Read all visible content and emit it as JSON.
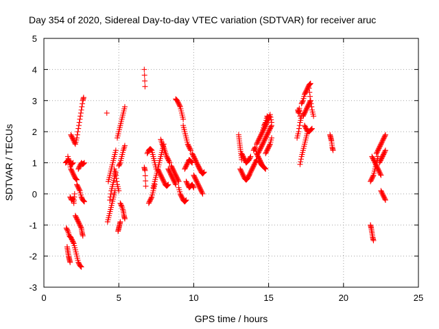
{
  "chart_data": {
    "type": "scatter",
    "title": "Day 354 of 2020, Sidereal Day-to-day VTEC variation (SDTVAR) for receiver aruc",
    "xlabel": "GPS time / hours",
    "ylabel": "SDTVAR / TECUs",
    "xlim": [
      0,
      25
    ],
    "ylim": [
      -3,
      5
    ],
    "xticks": [
      0,
      5,
      10,
      15,
      20,
      25
    ],
    "yticks": [
      -3,
      -2,
      -1,
      0,
      1,
      2,
      3,
      4,
      5
    ],
    "grid": true,
    "marker": "+",
    "color": "#ff0000",
    "series": [
      {
        "name": "SDTVAR",
        "segments": [
          {
            "x": [
              1.45,
              1.55,
              1.65,
              1.75,
              1.85,
              1.95
            ],
            "y": [
              1.0,
              1.05,
              1.1,
              1.0,
              0.95,
              1.0
            ]
          },
          {
            "x": [
              1.55,
              1.6,
              1.65,
              1.7,
              1.75
            ],
            "y": [
              -1.7,
              -1.85,
              -2.0,
              -2.1,
              -2.2
            ]
          },
          {
            "x": [
              1.5,
              1.6,
              1.7,
              1.8,
              1.9,
              2.0,
              2.1,
              2.2,
              2.3,
              2.4,
              2.5
            ],
            "y": [
              -1.1,
              -1.2,
              -1.35,
              -1.4,
              -1.5,
              -1.6,
              -1.8,
              -2.0,
              -2.2,
              -2.3,
              -2.35
            ]
          },
          {
            "x": [
              1.6,
              1.7,
              1.8,
              1.9,
              2.0,
              2.1,
              2.2
            ],
            "y": [
              1.2,
              1.0,
              0.8,
              0.7,
              0.6,
              0.5,
              0.45
            ]
          },
          {
            "x": [
              1.75,
              1.85,
              1.95,
              2.0,
              2.05
            ],
            "y": [
              -0.1,
              -0.2,
              -0.15,
              -0.3,
              0.0
            ]
          },
          {
            "x": [
              1.8,
              1.9,
              2.0,
              2.1,
              2.2,
              2.3,
              2.4,
              2.5,
              2.6,
              2.65
            ],
            "y": [
              1.9,
              1.8,
              1.7,
              1.6,
              1.8,
              2.1,
              2.4,
              2.7,
              3.0,
              3.1
            ]
          },
          {
            "x": [
              2.1,
              2.2,
              2.3,
              2.4,
              2.5,
              2.55,
              2.6
            ],
            "y": [
              -0.7,
              -0.8,
              -0.9,
              -1.0,
              -1.1,
              -1.25,
              -1.35
            ]
          },
          {
            "x": [
              2.2,
              2.3,
              2.4,
              2.5,
              2.6,
              2.7
            ],
            "y": [
              0.3,
              0.2,
              0.1,
              -0.1,
              -0.2,
              -0.25
            ]
          },
          {
            "x": [
              2.3,
              2.4,
              2.5,
              2.6,
              2.7
            ],
            "y": [
              0.8,
              0.9,
              1.0,
              0.95,
              1.0
            ]
          },
          {
            "x": [
              4.2
            ],
            "y": [
              2.6
            ]
          },
          {
            "x": [
              4.25,
              4.35,
              4.45,
              4.55,
              4.65,
              4.75
            ],
            "y": [
              -0.9,
              -0.7,
              -0.5,
              -0.3,
              -0.1,
              0.1
            ]
          },
          {
            "x": [
              4.3,
              4.4,
              4.5,
              4.6,
              4.7,
              4.8
            ],
            "y": [
              0.4,
              0.6,
              0.8,
              1.0,
              1.2,
              1.4
            ]
          },
          {
            "x": [
              4.4,
              4.5,
              4.6,
              4.7,
              4.8
            ],
            "y": [
              -0.2,
              0.1,
              0.3,
              0.5,
              0.7
            ]
          },
          {
            "x": [
              4.7,
              4.8,
              4.9,
              5.0
            ],
            "y": [
              0.8,
              0.6,
              0.3,
              0.1
            ]
          },
          {
            "x": [
              4.9,
              5.0,
              5.1,
              5.2,
              5.3,
              5.4
            ],
            "y": [
              1.8,
              2.0,
              2.2,
              2.4,
              2.6,
              2.8
            ]
          },
          {
            "x": [
              4.95,
              5.0,
              5.05,
              5.1
            ],
            "y": [
              -1.2,
              -1.1,
              -1.0,
              -0.9
            ]
          },
          {
            "x": [
              5.0,
              5.1,
              5.2,
              5.3,
              5.4
            ],
            "y": [
              0.9,
              1.0,
              1.2,
              1.4,
              1.55
            ]
          },
          {
            "x": [
              5.1,
              5.2,
              5.3,
              5.35,
              5.4
            ],
            "y": [
              -0.3,
              -0.4,
              -0.55,
              -0.7,
              -0.8
            ]
          },
          {
            "x": [
              6.7,
              6.75
            ],
            "y": [
              4.0,
              3.45
            ]
          },
          {
            "x": [
              6.7,
              6.75,
              6.8
            ],
            "y": [
              0.85,
              0.75,
              0.25
            ]
          },
          {
            "x": [
              6.9,
              7.0,
              7.1,
              7.2,
              7.3,
              7.4,
              7.5
            ],
            "y": [
              1.3,
              1.4,
              1.45,
              1.4,
              1.2,
              1.0,
              0.8
            ]
          },
          {
            "x": [
              7.0,
              7.1,
              7.2,
              7.3,
              7.4
            ],
            "y": [
              -0.3,
              -0.2,
              -0.1,
              0.1,
              0.3
            ]
          },
          {
            "x": [
              7.3,
              7.4,
              7.5,
              7.6,
              7.7,
              7.8,
              7.9,
              8.0
            ],
            "y": [
              0.2,
              0.4,
              0.6,
              0.8,
              1.0,
              1.2,
              1.4,
              1.6
            ]
          },
          {
            "x": [
              7.6,
              7.7,
              7.8,
              7.9,
              8.0,
              8.1,
              8.2,
              8.3
            ],
            "y": [
              0.8,
              0.7,
              0.6,
              0.5,
              0.4,
              0.3,
              0.25,
              0.3
            ]
          },
          {
            "x": [
              7.8,
              7.9,
              8.0,
              8.1,
              8.2,
              8.3,
              8.4
            ],
            "y": [
              1.75,
              1.6,
              1.5,
              1.35,
              1.2,
              1.1,
              1.0
            ]
          },
          {
            "x": [
              8.3,
              8.4,
              8.5,
              8.6,
              8.7,
              8.8
            ],
            "y": [
              0.8,
              0.7,
              0.6,
              0.5,
              0.4,
              0.3
            ]
          },
          {
            "x": [
              8.5,
              8.6,
              8.7,
              8.8,
              8.9,
              9.0
            ],
            "y": [
              0.9,
              0.8,
              0.7,
              0.6,
              0.5,
              0.4
            ]
          },
          {
            "x": [
              8.8,
              8.9,
              9.0,
              9.1,
              9.2,
              9.3
            ],
            "y": [
              3.05,
              3.0,
              2.9,
              2.8,
              2.6,
              2.4
            ]
          },
          {
            "x": [
              9.0,
              9.1,
              9.2,
              9.3,
              9.4,
              9.5
            ],
            "y": [
              0.2,
              0.0,
              -0.1,
              -0.2,
              -0.25,
              -0.2
            ]
          },
          {
            "x": [
              9.3,
              9.4,
              9.5,
              9.6,
              9.7,
              9.8
            ],
            "y": [
              2.2,
              2.0,
              1.8,
              1.6,
              1.5,
              1.4
            ]
          },
          {
            "x": [
              9.4,
              9.5,
              9.6,
              9.7,
              9.8,
              9.9
            ],
            "y": [
              0.8,
              0.9,
              1.0,
              1.1,
              1.05,
              1.0
            ]
          },
          {
            "x": [
              9.5,
              9.6,
              9.7,
              9.8,
              9.9,
              10.0
            ],
            "y": [
              0.4,
              0.3,
              0.2,
              0.25,
              0.3,
              0.2
            ]
          },
          {
            "x": [
              9.9,
              10.0,
              10.1,
              10.2,
              10.3,
              10.4
            ],
            "y": [
              1.3,
              1.2,
              1.1,
              1.0,
              0.9,
              0.8
            ]
          },
          {
            "x": [
              10.0,
              10.1,
              10.2,
              10.3,
              10.4,
              10.5,
              10.6
            ],
            "y": [
              0.6,
              0.5,
              0.4,
              0.3,
              0.2,
              0.1,
              0.0
            ]
          },
          {
            "x": [
              10.3,
              10.4,
              10.5,
              10.6,
              10.7
            ],
            "y": [
              0.9,
              0.8,
              0.7,
              0.65,
              0.7
            ]
          },
          {
            "x": [
              13.0,
              13.05,
              13.1,
              13.15,
              13.2
            ],
            "y": [
              1.9,
              1.7,
              1.5,
              1.3,
              1.1
            ]
          },
          {
            "x": [
              13.1,
              13.2,
              13.3,
              13.4,
              13.5,
              13.6,
              13.7
            ],
            "y": [
              0.8,
              0.7,
              0.6,
              0.5,
              0.45,
              0.5,
              0.6
            ]
          },
          {
            "x": [
              13.2,
              13.3,
              13.4,
              13.5,
              13.6,
              13.7,
              13.8
            ],
            "y": [
              1.3,
              1.2,
              1.1,
              1.0,
              1.05,
              1.1,
              1.2
            ]
          },
          {
            "x": [
              13.7,
              13.8,
              13.9,
              14.0,
              14.1,
              14.2
            ],
            "y": [
              0.6,
              0.7,
              0.8,
              0.9,
              1.0,
              1.1
            ]
          },
          {
            "x": [
              14.0,
              14.1,
              14.2,
              14.3,
              14.4,
              14.5,
              14.6
            ],
            "y": [
              1.4,
              1.5,
              1.3,
              1.2,
              1.1,
              1.0,
              0.9
            ]
          },
          {
            "x": [
              14.2,
              14.3,
              14.4,
              14.5,
              14.6,
              14.7,
              14.8,
              14.9,
              15.0
            ],
            "y": [
              1.6,
              1.7,
              1.8,
              1.9,
              2.0,
              2.1,
              2.2,
              2.3,
              2.45
            ]
          },
          {
            "x": [
              14.3,
              14.4,
              14.5,
              14.6,
              14.7,
              14.8,
              14.9,
              15.0,
              15.1,
              15.2
            ],
            "y": [
              1.3,
              1.4,
              1.5,
              1.6,
              1.7,
              1.8,
              1.9,
              2.0,
              2.1,
              2.2
            ]
          },
          {
            "x": [
              14.4,
              14.5,
              14.6,
              14.7,
              14.8
            ],
            "y": [
              1.05,
              0.95,
              0.9,
              0.85,
              0.8
            ]
          },
          {
            "x": [
              14.6,
              14.7,
              14.8,
              14.9,
              15.0,
              15.1,
              15.2
            ],
            "y": [
              2.0,
              2.2,
              2.3,
              2.5,
              2.4,
              2.55,
              2.3
            ]
          },
          {
            "x": [
              14.8,
              14.9,
              15.0,
              15.1,
              15.2
            ],
            "y": [
              1.3,
              1.4,
              1.5,
              1.6,
              1.8
            ]
          },
          {
            "x": [
              16.9,
              17.0,
              17.1,
              17.2
            ],
            "y": [
              1.8,
              2.0,
              2.3,
              2.5
            ]
          },
          {
            "x": [
              16.95,
              17.0,
              17.05,
              17.1
            ],
            "y": [
              2.7,
              2.6,
              2.75,
              2.5
            ]
          },
          {
            "x": [
              17.1,
              17.2,
              17.3,
              17.4,
              17.5,
              17.6
            ],
            "y": [
              0.95,
              1.2,
              1.4,
              1.6,
              1.8,
              2.0
            ]
          },
          {
            "x": [
              17.2,
              17.3,
              17.4,
              17.5,
              17.6,
              17.7,
              17.8
            ],
            "y": [
              2.9,
              3.0,
              3.2,
              3.3,
              3.4,
              3.5,
              3.55
            ]
          },
          {
            "x": [
              17.3,
              17.4,
              17.5,
              17.6,
              17.7,
              17.8
            ],
            "y": [
              2.5,
              2.6,
              2.7,
              2.8,
              2.9,
              3.0
            ]
          },
          {
            "x": [
              17.4,
              17.5,
              17.6,
              17.7,
              17.8,
              17.9
            ],
            "y": [
              2.2,
              2.1,
              2.0,
              2.0,
              2.05,
              2.1
            ]
          },
          {
            "x": [
              17.7,
              17.8,
              17.9,
              18.0
            ],
            "y": [
              3.4,
              3.0,
              2.7,
              2.5
            ]
          },
          {
            "x": [
              19.1,
              19.15,
              19.2,
              19.25,
              19.3
            ],
            "y": [
              1.9,
              1.8,
              1.7,
              1.5,
              1.4
            ]
          },
          {
            "x": [
              21.8,
              21.85,
              21.9,
              21.95,
              22.0
            ],
            "y": [
              -1.0,
              -1.1,
              -1.25,
              -1.4,
              -1.5
            ]
          },
          {
            "x": [
              21.8,
              21.9,
              22.0,
              22.1,
              22.2,
              22.3
            ],
            "y": [
              0.4,
              0.5,
              0.6,
              0.8,
              1.0,
              1.2
            ]
          },
          {
            "x": [
              21.9,
              22.0,
              22.1,
              22.2,
              22.3,
              22.4,
              22.5
            ],
            "y": [
              1.2,
              1.1,
              1.0,
              0.9,
              0.8,
              0.7,
              0.6
            ]
          },
          {
            "x": [
              22.2,
              22.3,
              22.4,
              22.5,
              22.6,
              22.7,
              22.8
            ],
            "y": [
              1.3,
              1.4,
              1.5,
              1.6,
              1.7,
              1.8,
              1.9
            ]
          },
          {
            "x": [
              22.4,
              22.5,
              22.6,
              22.7,
              22.8
            ],
            "y": [
              1.0,
              1.1,
              1.2,
              1.3,
              1.4
            ]
          },
          {
            "x": [
              22.5,
              22.6,
              22.7,
              22.8
            ],
            "y": [
              0.1,
              0.0,
              -0.1,
              -0.2
            ]
          }
        ]
      }
    ]
  }
}
